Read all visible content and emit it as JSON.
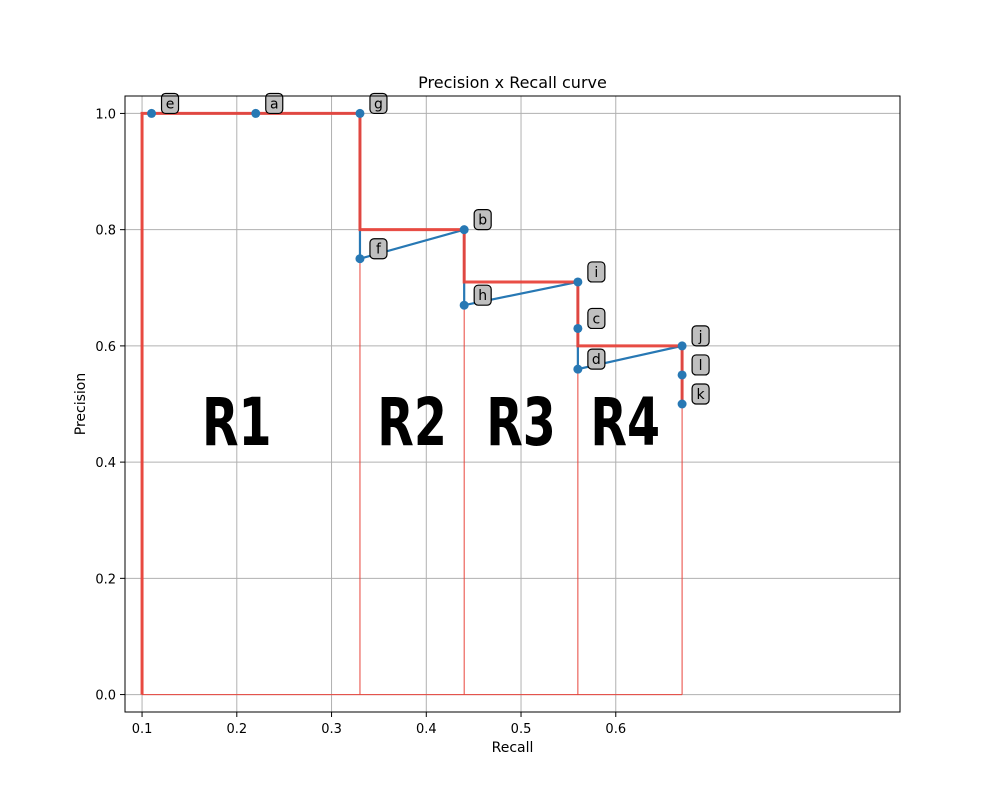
{
  "chart_data": {
    "type": "line",
    "title": "Precision x Recall curve",
    "xlabel": "Recall",
    "ylabel": "Precision",
    "xlim": [
      0.082,
      0.9
    ],
    "ylim": [
      -0.03,
      1.03
    ],
    "xticks": [
      0.1,
      0.2,
      0.3,
      0.4,
      0.5,
      0.6
    ],
    "xtick_labels": [
      "0.1",
      "0.2",
      "0.3",
      "0.4",
      "0.5",
      "0.6"
    ],
    "yticks": [
      0.0,
      0.2,
      0.4,
      0.6,
      0.8,
      1.0
    ],
    "ytick_labels": [
      "0.0",
      "0.2",
      "0.4",
      "0.6",
      "0.8",
      "1.0"
    ],
    "grid": true,
    "points": [
      {
        "label": "e",
        "x": 0.11,
        "y": 1.0
      },
      {
        "label": "a",
        "x": 0.22,
        "y": 1.0
      },
      {
        "label": "g",
        "x": 0.33,
        "y": 1.0
      },
      {
        "label": "f",
        "x": 0.33,
        "y": 0.75
      },
      {
        "label": "b",
        "x": 0.44,
        "y": 0.8
      },
      {
        "label": "h",
        "x": 0.44,
        "y": 0.67
      },
      {
        "label": "i",
        "x": 0.56,
        "y": 0.71
      },
      {
        "label": "c",
        "x": 0.56,
        "y": 0.63
      },
      {
        "label": "d",
        "x": 0.56,
        "y": 0.56
      },
      {
        "label": "j",
        "x": 0.67,
        "y": 0.6
      },
      {
        "label": "l",
        "x": 0.67,
        "y": 0.55
      },
      {
        "label": "k",
        "x": 0.67,
        "y": 0.5
      }
    ],
    "interpolated_envelope": [
      [
        0.1,
        0.0
      ],
      [
        0.1,
        1.0
      ],
      [
        0.33,
        1.0
      ],
      [
        0.33,
        0.8
      ],
      [
        0.44,
        0.8
      ],
      [
        0.44,
        0.71
      ],
      [
        0.56,
        0.71
      ],
      [
        0.56,
        0.6
      ],
      [
        0.67,
        0.6
      ],
      [
        0.67,
        0.5
      ]
    ],
    "region_boundaries_x": [
      0.1,
      0.33,
      0.44,
      0.56,
      0.67
    ],
    "regions": [
      {
        "label": "R1",
        "x": 0.2,
        "y": 0.45
      },
      {
        "label": "R2",
        "x": 0.385,
        "y": 0.45
      },
      {
        "label": "R3",
        "x": 0.5,
        "y": 0.45
      },
      {
        "label": "R4",
        "x": 0.61,
        "y": 0.45
      }
    ],
    "colors": {
      "series": "#2778b4",
      "envelope": "#e8453c",
      "grid": "#b0b0b0",
      "label_box": "#bfbfbf"
    }
  }
}
